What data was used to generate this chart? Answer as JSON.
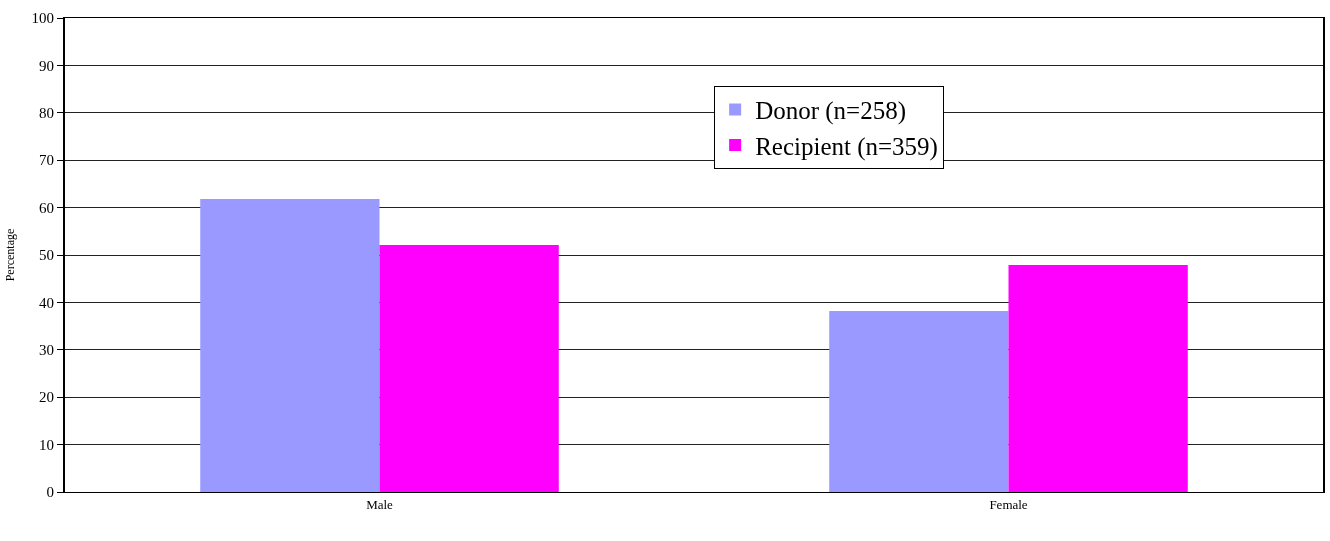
{
  "chart_data": {
    "type": "bar",
    "ylabel": "Percentage",
    "categories": [
      "Male",
      "Female"
    ],
    "series": [
      {
        "name": "Donor (n=258)",
        "color": "#9999ff",
        "values": [
          61.8,
          38.2
        ]
      },
      {
        "name": "Recipient (n=359)",
        "color": "#ff00ff",
        "values": [
          52.1,
          47.9
        ]
      }
    ],
    "ylim": [
      0,
      100
    ],
    "yticks": [
      0,
      10,
      20,
      30,
      40,
      50,
      60,
      70,
      80,
      90,
      100
    ],
    "grid": "y",
    "legend": "top right"
  }
}
